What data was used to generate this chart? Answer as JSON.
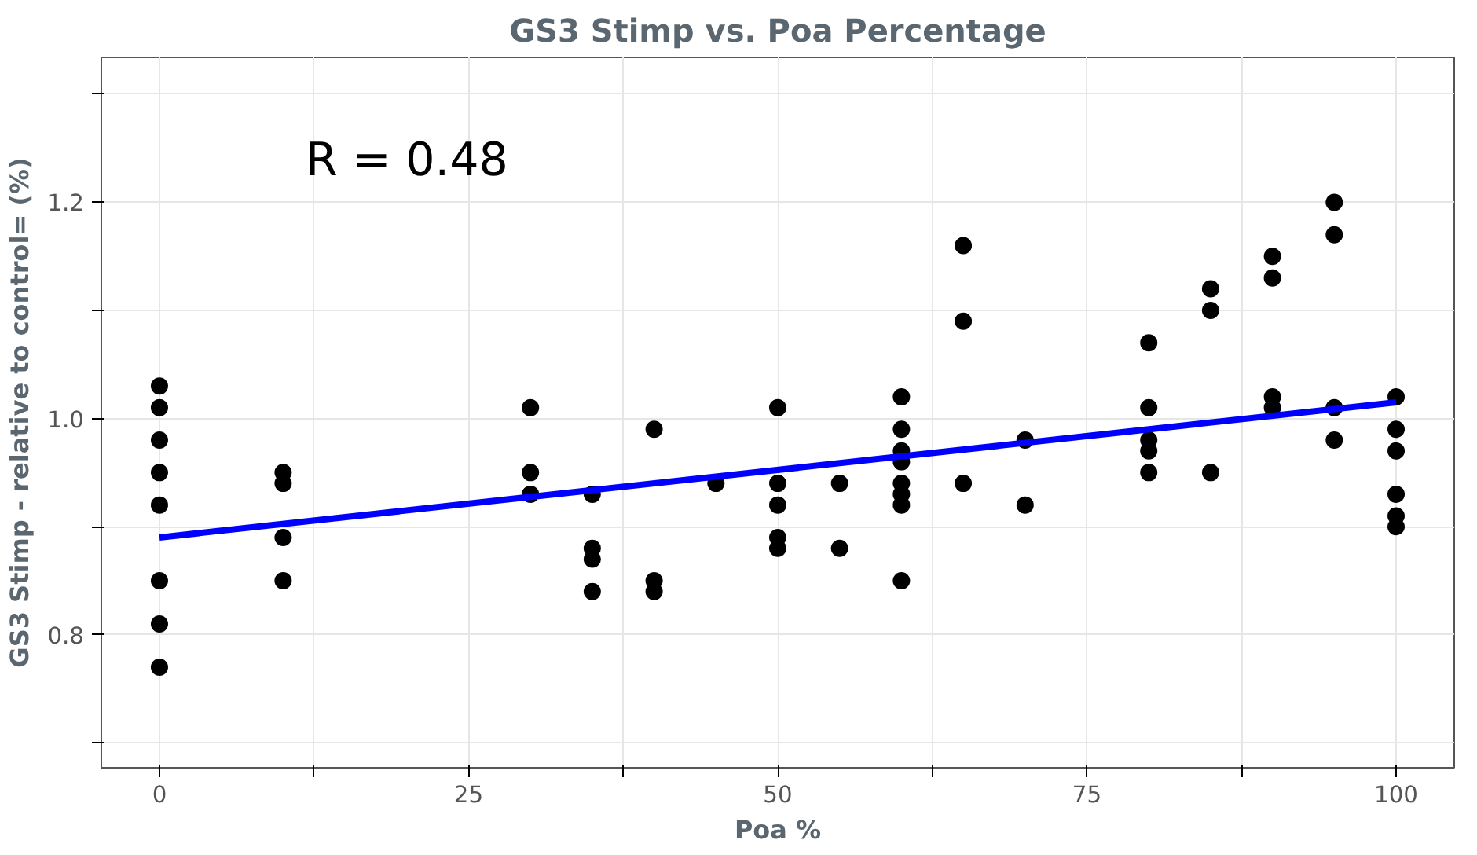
{
  "chart_data": {
    "type": "scatter",
    "title": "GS3 Stimp vs. Poa Percentage",
    "xlabel": "Poa %",
    "ylabel": "GS3 Stimp - relative to control= (%)",
    "annotations": [
      "R = 0.48"
    ],
    "xlim": [
      -4.7,
      104.7
    ],
    "ylim": [
      0.677,
      1.334
    ],
    "xticks": [
      0,
      {
        "value": 12.5,
        "label": null
      },
      25,
      {
        "value": 37.5,
        "label": null
      },
      50,
      {
        "value": 62.5,
        "label": null
      },
      75,
      {
        "value": 87.5,
        "label": null
      },
      100
    ],
    "yticks": [
      {
        "value": 0.7,
        "label": null
      },
      0.8,
      {
        "value": 0.9,
        "label": null
      },
      "1.0",
      {
        "value": 1.1,
        "label": null
      },
      1.2,
      {
        "value": 1.3,
        "label": null
      }
    ],
    "grid": true,
    "series": [
      {
        "marker": "circle",
        "color": "#000000",
        "x": [
          0,
          0,
          0,
          0,
          0,
          0,
          0,
          0,
          10,
          10,
          10,
          10,
          30,
          30,
          30,
          35,
          35,
          35,
          35,
          40,
          40,
          40,
          45,
          50,
          50,
          50,
          50,
          50,
          55,
          55,
          60,
          60,
          60,
          60,
          60,
          60,
          60,
          60,
          65,
          65,
          65,
          70,
          70,
          80,
          80,
          80,
          80,
          80,
          85,
          85,
          85,
          90,
          90,
          90,
          90,
          95,
          95,
          95,
          95,
          100,
          100,
          100,
          100,
          100,
          100
        ],
        "values": [
          1.03,
          1.01,
          0.98,
          0.95,
          0.92,
          0.85,
          0.81,
          0.77,
          0.95,
          0.94,
          0.89,
          0.85,
          1.01,
          0.95,
          0.93,
          0.93,
          0.88,
          0.87,
          0.84,
          0.99,
          0.85,
          0.84,
          0.94,
          1.01,
          0.94,
          0.92,
          0.89,
          0.88,
          0.94,
          0.88,
          1.02,
          0.99,
          0.97,
          0.96,
          0.94,
          0.93,
          0.92,
          0.85,
          1.16,
          1.09,
          0.94,
          0.98,
          0.92,
          1.07,
          1.01,
          0.98,
          0.97,
          0.95,
          1.12,
          1.1,
          0.95,
          1.15,
          1.13,
          1.02,
          1.01,
          1.2,
          1.17,
          1.01,
          0.98,
          1.02,
          0.99,
          0.97,
          0.93,
          0.91,
          0.9
        ]
      },
      {
        "type": "line",
        "color": "#0000ff",
        "x": [
          0,
          100
        ],
        "values": [
          0.89,
          1.015
        ]
      }
    ]
  }
}
